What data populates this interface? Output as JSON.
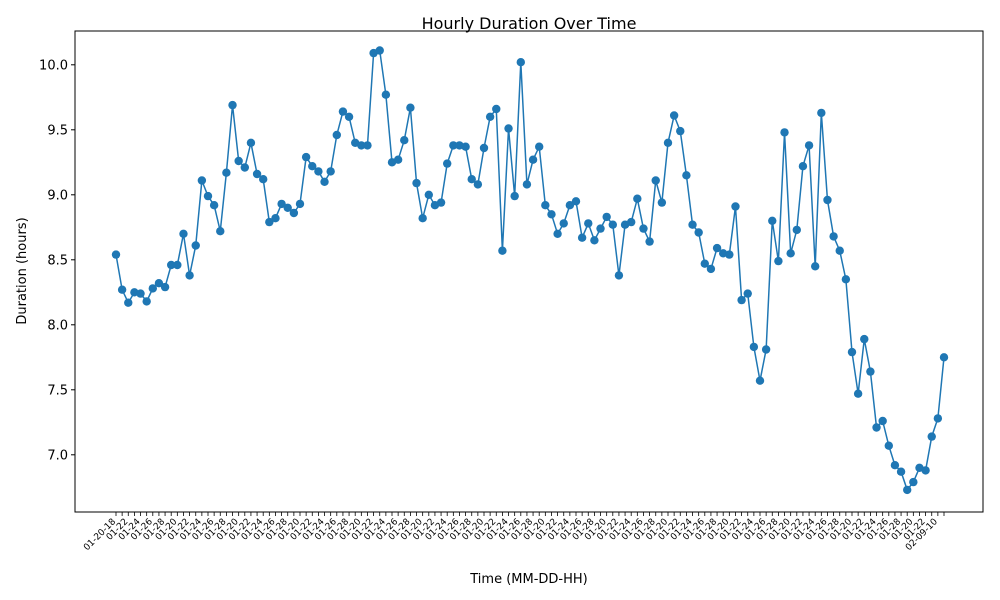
{
  "chart_data": {
    "type": "line",
    "title": "Hourly Duration Over Time",
    "xlabel": "Time (MM-DD-HH)",
    "ylabel": "Duration (hours)",
    "ylim": [
      6.56,
      10.26
    ],
    "y_ticks": [
      7.0,
      7.5,
      8.0,
      8.5,
      9.0,
      9.5,
      10.0
    ],
    "y_tick_labels": [
      "7.0",
      "7.5",
      "8.0",
      "8.5",
      "9.0",
      "9.5",
      "10.0"
    ],
    "x_tick_labels_note": "x tick labels are overlapping and illegible; first visible '01-20-18', last visible '02-09-10'",
    "x_first_label": "01-20-18",
    "x_last_label": "02-09-10",
    "color": "#1f77b4",
    "grid": false,
    "values": [
      8.54,
      8.27,
      8.17,
      8.25,
      8.24,
      8.18,
      8.28,
      8.32,
      8.29,
      8.46,
      8.46,
      8.7,
      8.38,
      8.61,
      9.11,
      8.99,
      8.92,
      8.72,
      9.17,
      9.69,
      9.26,
      9.21,
      9.4,
      9.16,
      9.12,
      8.79,
      8.82,
      8.93,
      8.9,
      8.86,
      8.93,
      9.29,
      9.22,
      9.18,
      9.1,
      9.18,
      9.46,
      9.64,
      9.6,
      9.4,
      9.38,
      9.38,
      10.09,
      10.11,
      9.77,
      9.25,
      9.27,
      9.42,
      9.67,
      9.09,
      8.82,
      9.0,
      8.92,
      8.94,
      9.24,
      9.38,
      9.38,
      9.37,
      9.12,
      9.08,
      9.36,
      9.6,
      9.66,
      8.57,
      9.51,
      8.99,
      10.02,
      9.08,
      9.27,
      9.37,
      8.92,
      8.85,
      8.7,
      8.78,
      8.92,
      8.95,
      8.67,
      8.78,
      8.65,
      8.74,
      8.83,
      8.77,
      8.38,
      8.77,
      8.79,
      8.97,
      8.74,
      8.64,
      9.11,
      8.94,
      9.4,
      9.61,
      9.49,
      9.15,
      8.77,
      8.71,
      8.47,
      8.43,
      8.59,
      8.55,
      8.54,
      8.91,
      8.19,
      8.24,
      7.83,
      7.57,
      7.81,
      8.8,
      8.49,
      9.48,
      8.55,
      8.73,
      9.22,
      9.38,
      8.45,
      9.63,
      8.96,
      8.68,
      8.57,
      8.35,
      7.79,
      7.47,
      7.89,
      7.64,
      7.21,
      7.26,
      7.07,
      6.92,
      6.87,
      6.73,
      6.79,
      6.9,
      6.88,
      7.14,
      7.28,
      7.75
    ]
  }
}
